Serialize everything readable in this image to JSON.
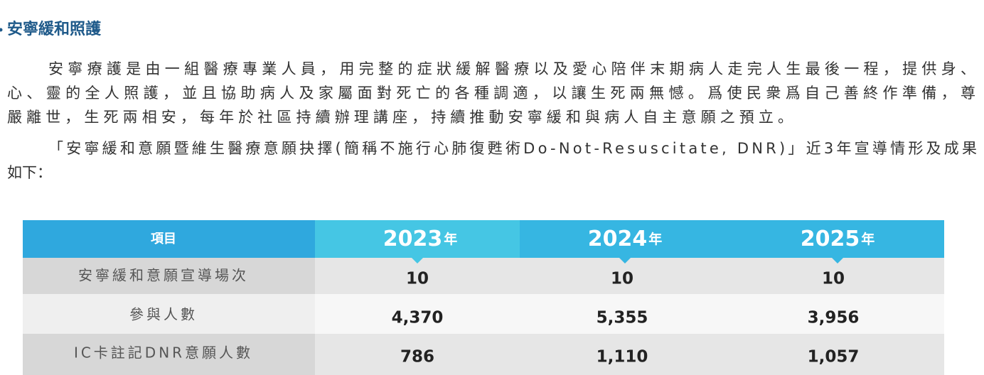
{
  "section": {
    "title": "安寧緩和照護",
    "paragraphs": [
      [
        "安寧療護是由一組醫療專業人員，用完整的症狀緩解醫療以及愛心陪伴末期病人走完人生最後一程，提供身、",
        "心、靈的全人照護，並且協助病人及家屬面對死亡的各種調適，以讓生死兩無憾。爲使民衆爲自己善終作準備，尊",
        "嚴離世，生死兩相安，每年於社區持續辦理講座，持續推動安寧緩和與病人自主意願之預立。"
      ],
      [
        "「安寧緩和意願暨維生醫療意願抉擇(簡稱不施行心肺復甦術Do-Not-Resuscitate, DNR)」近3年宣導情形及成果",
        "如下："
      ]
    ]
  },
  "table": {
    "header": {
      "label": "項目",
      "years": [
        {
          "year": "2023",
          "unit": "年"
        },
        {
          "year": "2024",
          "unit": "年"
        },
        {
          "year": "2025",
          "unit": "年"
        }
      ]
    },
    "rows": [
      [
        "安寧緩和意願宣導場次",
        "10",
        "10",
        "10"
      ],
      [
        "參與人數",
        "4,370",
        "5,355",
        "3,956"
      ],
      [
        "IC卡註記DNR意願人數",
        "786",
        "1,110",
        "1,057"
      ]
    ]
  }
}
